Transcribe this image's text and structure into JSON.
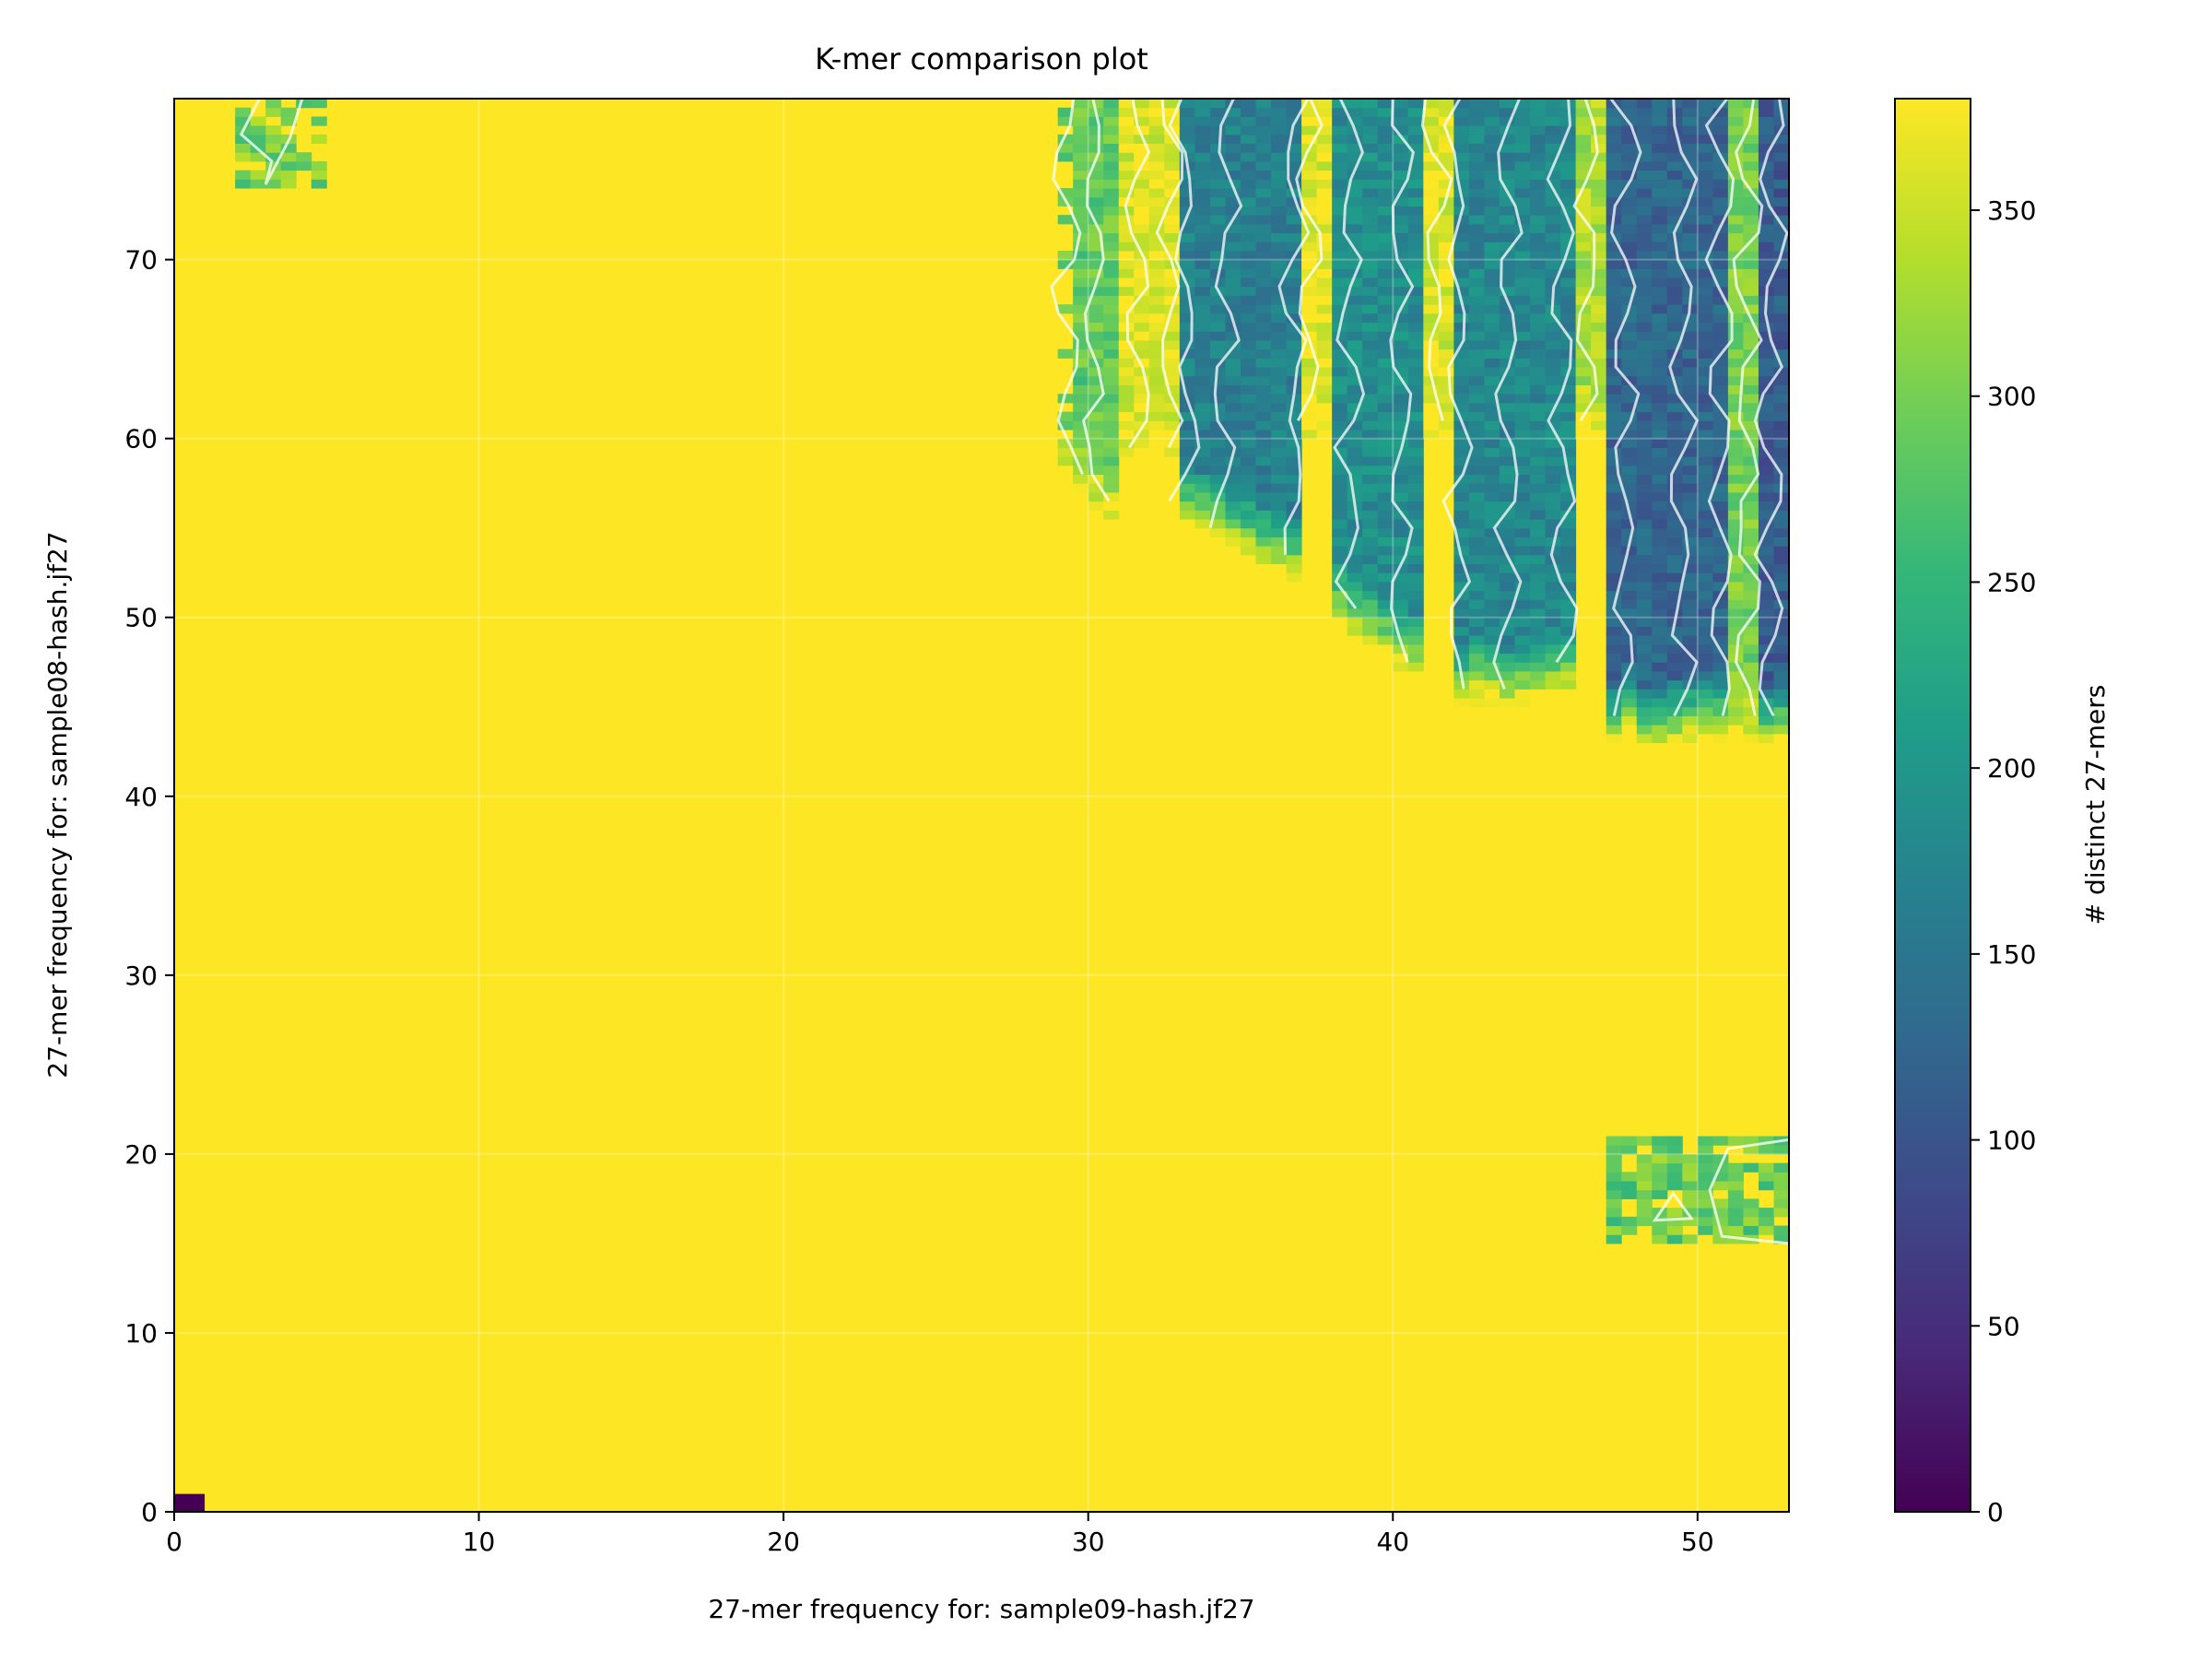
{
  "chart_data": {
    "type": "heatmap",
    "title": "K-mer comparison plot",
    "xlabel": "27-mer frequency for: sample09-hash.jf27",
    "ylabel": "27-mer frequency for: sample08-hash.jf27",
    "xlim": [
      0,
      53
    ],
    "ylim": [
      0,
      79
    ],
    "xticks": [
      0,
      10,
      20,
      30,
      40,
      50
    ],
    "yticks": [
      0,
      10,
      20,
      30,
      40,
      50,
      60,
      70
    ],
    "colorbar": {
      "label": "# distinct 27-mers",
      "ticks": [
        0,
        50,
        100,
        150,
        200,
        250,
        300,
        350
      ],
      "range": [
        0,
        380
      ],
      "colormap": "viridis",
      "colors": [
        "#440154",
        "#482878",
        "#3e4989",
        "#31688e",
        "#26828e",
        "#1f9e89",
        "#35b779",
        "#6ece58",
        "#b5de2b",
        "#fde725"
      ]
    },
    "background_value": 380,
    "grid": true,
    "contours": true,
    "contour_color": "#ffffff",
    "regions": [
      {
        "name": "origin cell",
        "x": [
          0,
          1
        ],
        "y": [
          0,
          1
        ],
        "value": 0
      },
      {
        "name": "top-left patch",
        "x": [
          2,
          5
        ],
        "y": [
          74,
          79
        ],
        "value": 300
      },
      {
        "name": "upper-right block",
        "x": [
          29,
          53
        ],
        "y": [
          43,
          79
        ],
        "value": 180
      },
      {
        "name": "lower-right patch",
        "x": [
          47,
          53
        ],
        "y": [
          15,
          21
        ],
        "value": 290
      }
    ]
  }
}
